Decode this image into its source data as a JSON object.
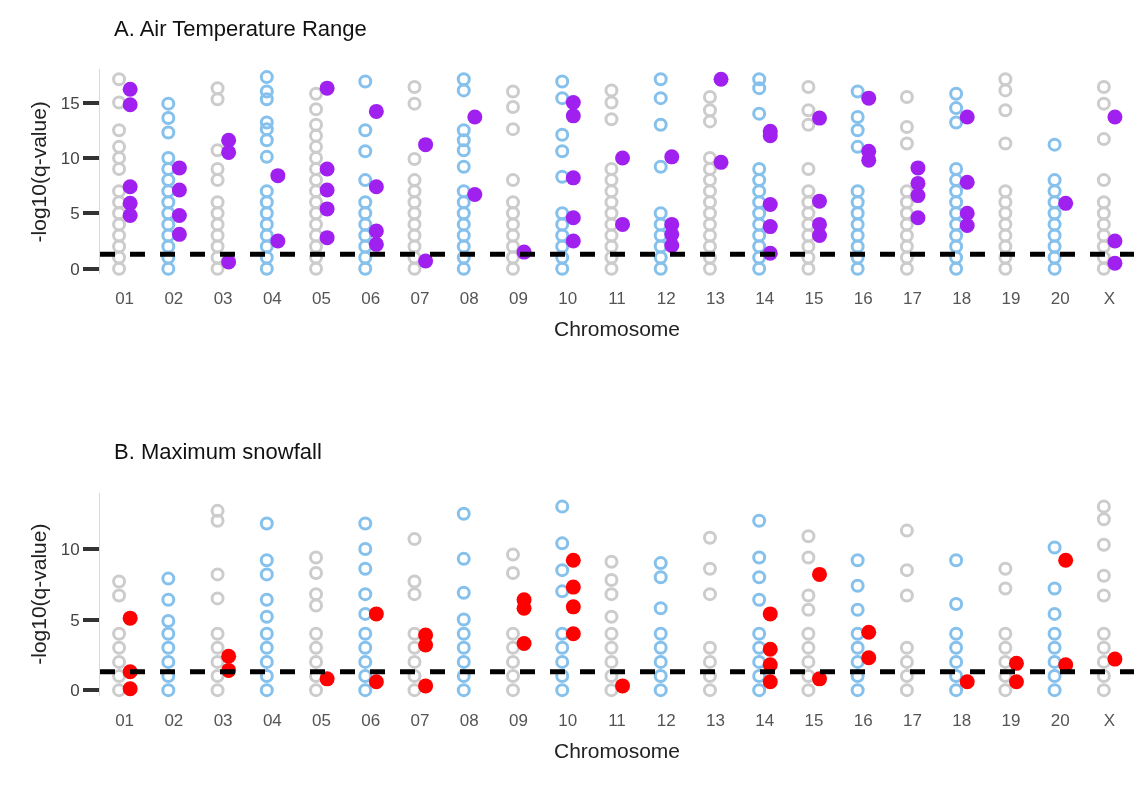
{
  "chart_data": [
    {
      "type": "scatter",
      "title": "A. Air Temperature Range",
      "xlabel": "Chromosome",
      "ylabel": "-log10(q-value)",
      "categories": [
        "01",
        "02",
        "03",
        "04",
        "05",
        "06",
        "07",
        "08",
        "09",
        "10",
        "11",
        "12",
        "13",
        "14",
        "15",
        "16",
        "17",
        "18",
        "19",
        "20",
        "X"
      ],
      "ylim": [
        -0.5,
        18
      ],
      "yticks": [
        0,
        5,
        10,
        15
      ],
      "ref_lines": [
        {
          "axis": "y",
          "value": 1.3,
          "color": "#000000",
          "line_style": "dashed"
        }
      ],
      "series": [
        {
          "color": "#cccccc",
          "marker": "circle-open",
          "x": [
            "01",
            "01",
            "01",
            "01",
            "01",
            "01",
            "01",
            "01",
            "01",
            "01",
            "01",
            "01",
            "01",
            "01",
            "03",
            "03",
            "03",
            "03",
            "03",
            "03",
            "03",
            "03",
            "03",
            "03",
            "03",
            "03",
            "05",
            "05",
            "05",
            "05",
            "05",
            "05",
            "05",
            "05",
            "05",
            "05",
            "05",
            "05",
            "05",
            "05",
            "05",
            "05",
            "07",
            "07",
            "07",
            "07",
            "07",
            "07",
            "07",
            "07",
            "07",
            "07",
            "07",
            "07",
            "09",
            "09",
            "09",
            "09",
            "09",
            "09",
            "09",
            "09",
            "09",
            "09",
            "09",
            "11",
            "11",
            "11",
            "11",
            "11",
            "11",
            "11",
            "11",
            "11",
            "11",
            "11",
            "11",
            "11",
            "13",
            "13",
            "13",
            "13",
            "13",
            "13",
            "13",
            "13",
            "13",
            "13",
            "13",
            "13",
            "13",
            "13",
            "15",
            "15",
            "15",
            "15",
            "15",
            "15",
            "15",
            "15",
            "15",
            "15",
            "15",
            "15",
            "17",
            "17",
            "17",
            "17",
            "17",
            "17",
            "17",
            "17",
            "17",
            "17",
            "17",
            "19",
            "19",
            "19",
            "19",
            "19",
            "19",
            "19",
            "19",
            "19",
            "19",
            "19",
            "19",
            "X",
            "X",
            "X",
            "X",
            "X",
            "X",
            "X",
            "X",
            "X",
            "X",
            "X"
          ],
          "values": [
            0,
            1,
            2,
            3,
            4,
            5,
            6,
            7,
            9,
            10,
            11,
            12.5,
            15,
            17.1,
            0,
            1,
            2,
            3,
            4,
            5,
            6,
            8,
            9,
            10.7,
            15.3,
            16.3,
            0,
            1,
            2,
            3,
            4,
            5,
            6,
            7,
            8,
            9,
            10,
            11,
            12,
            13,
            14.4,
            15.8,
            0,
            1,
            2,
            3,
            4,
            5,
            6,
            7,
            8,
            9.9,
            14.9,
            16.4,
            0,
            1,
            2,
            3,
            4,
            5,
            6,
            8,
            12.6,
            14.6,
            16,
            0,
            1,
            2,
            3,
            4,
            5,
            6,
            7,
            8,
            9,
            13.5,
            15,
            16.1,
            0,
            1,
            2,
            3,
            4,
            5,
            6,
            7,
            8,
            9,
            10,
            13.3,
            14.3,
            15.5,
            0,
            1,
            2,
            3,
            4,
            5,
            6,
            7,
            9,
            13,
            14.3,
            16.4,
            0,
            1,
            2,
            3,
            4,
            5,
            6,
            7,
            11.3,
            12.8,
            15.5,
            0,
            1,
            2,
            3,
            4,
            5,
            6,
            7,
            11.3,
            14.3,
            16.1,
            17.1,
            0,
            1,
            2,
            3,
            4,
            5,
            6,
            8,
            11.7,
            14.9,
            16.4
          ]
        },
        {
          "color": "#85c1ec",
          "marker": "circle-open",
          "x": [
            "02",
            "02",
            "02",
            "02",
            "02",
            "02",
            "02",
            "02",
            "02",
            "02",
            "02",
            "02",
            "02",
            "02",
            "04",
            "04",
            "04",
            "04",
            "04",
            "04",
            "04",
            "04",
            "04",
            "04",
            "04",
            "04",
            "04",
            "04",
            "04",
            "06",
            "06",
            "06",
            "06",
            "06",
            "06",
            "06",
            "06",
            "06",
            "06",
            "06",
            "08",
            "08",
            "08",
            "08",
            "08",
            "08",
            "08",
            "08",
            "08",
            "08",
            "08",
            "08",
            "08",
            "08",
            "10",
            "10",
            "10",
            "10",
            "10",
            "10",
            "10",
            "10",
            "10",
            "10",
            "10",
            "12",
            "12",
            "12",
            "12",
            "12",
            "12",
            "12",
            "12",
            "12",
            "12",
            "14",
            "14",
            "14",
            "14",
            "14",
            "14",
            "14",
            "14",
            "14",
            "14",
            "14",
            "14",
            "14",
            "16",
            "16",
            "16",
            "16",
            "16",
            "16",
            "16",
            "16",
            "16",
            "16",
            "16",
            "16",
            "18",
            "18",
            "18",
            "18",
            "18",
            "18",
            "18",
            "18",
            "18",
            "18",
            "18",
            "18",
            "18",
            "20",
            "20",
            "20",
            "20",
            "20",
            "20",
            "20",
            "20",
            "20",
            "20"
          ],
          "values": [
            0,
            1,
            2,
            3,
            4,
            5,
            6,
            7,
            8,
            9,
            10,
            12.3,
            13.6,
            14.9,
            0,
            1,
            2,
            3,
            4,
            5,
            6,
            7,
            10.1,
            11.6,
            12.6,
            13.2,
            15.3,
            16,
            17.3,
            0,
            1,
            2,
            3,
            4,
            5,
            6,
            8,
            10.6,
            12.5,
            16.9,
            0,
            1,
            2,
            3,
            4,
            5,
            6,
            7,
            9.2,
            10.7,
            11.6,
            12.5,
            16.1,
            17.1,
            0,
            1,
            2,
            3,
            4,
            5,
            8.3,
            10.6,
            12.1,
            15.4,
            16.9,
            0,
            1,
            2,
            3,
            4,
            5,
            9.2,
            13,
            15.4,
            17.1,
            0,
            1,
            2,
            3,
            4,
            5,
            6,
            7,
            8,
            9,
            14,
            16.3,
            17.1,
            0,
            1,
            2,
            3,
            4,
            5,
            6,
            7,
            11,
            12.5,
            13.7,
            16,
            0,
            1,
            2,
            3,
            4,
            5,
            6,
            7,
            8,
            9,
            13.2,
            14.5,
            15.8,
            0,
            1,
            2,
            3,
            4,
            5,
            6,
            7,
            8,
            11.2
          ]
        },
        {
          "color": "#a020f0",
          "marker": "circle",
          "x": [
            "01",
            "01",
            "01",
            "01",
            "01",
            "02",
            "02",
            "02",
            "02",
            "03",
            "03",
            "03",
            "04",
            "04",
            "05",
            "05",
            "05",
            "05",
            "05",
            "06",
            "06",
            "06",
            "06",
            "07",
            "07",
            "08",
            "08",
            "09",
            "10",
            "10",
            "10",
            "10",
            "10",
            "11",
            "11",
            "12",
            "12",
            "12",
            "12",
            "13",
            "13",
            "14",
            "14",
            "14",
            "14",
            "14",
            "15",
            "15",
            "15",
            "15",
            "16",
            "16",
            "16",
            "17",
            "17",
            "17",
            "17",
            "18",
            "18",
            "18",
            "18",
            "20",
            "X",
            "X",
            "X"
          ],
          "values": [
            16.2,
            14.8,
            7.4,
            5.9,
            4.8,
            9.1,
            7.1,
            4.8,
            3.1,
            11.6,
            10.5,
            0.6,
            8.4,
            2.5,
            16.3,
            9,
            7.1,
            5.4,
            2.8,
            14.2,
            7.4,
            3.4,
            2.2,
            11.2,
            0.7,
            13.7,
            6.7,
            1.5,
            15,
            13.8,
            8.2,
            4.6,
            2.5,
            10,
            4,
            10.1,
            4,
            3.1,
            2.1,
            17.1,
            9.6,
            12.4,
            12,
            5.8,
            3.8,
            1.4,
            13.6,
            6.1,
            4,
            3,
            15.4,
            10.6,
            9.8,
            9.1,
            7.7,
            6.6,
            4.6,
            13.7,
            7.8,
            5,
            3.9,
            5.9,
            13.7,
            2.5,
            0.5
          ]
        }
      ]
    },
    {
      "type": "scatter",
      "title": "B. Maximum snowfall",
      "xlabel": "Chromosome",
      "ylabel": "-log10(q-value)",
      "categories": [
        "01",
        "02",
        "03",
        "04",
        "05",
        "06",
        "07",
        "08",
        "09",
        "10",
        "11",
        "12",
        "13",
        "14",
        "15",
        "16",
        "17",
        "18",
        "19",
        "20",
        "X"
      ],
      "ylim": [
        -0.4,
        14
      ],
      "yticks": [
        0,
        5,
        10
      ],
      "ref_lines": [
        {
          "axis": "y",
          "value": 1.3,
          "color": "#000000",
          "line_style": "dashed"
        }
      ],
      "series": [
        {
          "color": "#cccccc",
          "marker": "circle-open",
          "x": [
            "01",
            "01",
            "01",
            "01",
            "01",
            "01",
            "01",
            "03",
            "03",
            "03",
            "03",
            "03",
            "03",
            "03",
            "03",
            "03",
            "05",
            "05",
            "05",
            "05",
            "05",
            "05",
            "05",
            "05",
            "05",
            "07",
            "07",
            "07",
            "07",
            "07",
            "07",
            "07",
            "07",
            "09",
            "09",
            "09",
            "09",
            "09",
            "09",
            "09",
            "11",
            "11",
            "11",
            "11",
            "11",
            "11",
            "11",
            "11",
            "11",
            "13",
            "13",
            "13",
            "13",
            "13",
            "13",
            "13",
            "15",
            "15",
            "15",
            "15",
            "15",
            "15",
            "15",
            "15",
            "15",
            "17",
            "17",
            "17",
            "17",
            "17",
            "17",
            "17",
            "19",
            "19",
            "19",
            "19",
            "19",
            "19",
            "19",
            "X",
            "X",
            "X",
            "X",
            "X",
            "X",
            "X",
            "X",
            "X",
            "X"
          ],
          "values": [
            0,
            1,
            2,
            3,
            4,
            6.7,
            7.7,
            0,
            1,
            2,
            3,
            4,
            6.5,
            8.2,
            12,
            12.7,
            0,
            1,
            2,
            3,
            4,
            6,
            6.8,
            8.3,
            9.4,
            0,
            1,
            2,
            3,
            4,
            6.8,
            7.7,
            10.7,
            0,
            1,
            2,
            3,
            4,
            8.3,
            9.6,
            0,
            1,
            2,
            3,
            4,
            5.2,
            6.8,
            7.8,
            9.1,
            0,
            1,
            2,
            3,
            6.8,
            8.6,
            10.8,
            0,
            1,
            2,
            3,
            4,
            5.7,
            6.7,
            9.4,
            10.9,
            0,
            1,
            2,
            3,
            6.7,
            8.5,
            11.3,
            0,
            1,
            2,
            3,
            4,
            7.2,
            8.6,
            0,
            1,
            2,
            3,
            4,
            6.7,
            8.1,
            10.3,
            12.1,
            13
          ]
        },
        {
          "color": "#85c1ec",
          "marker": "circle-open",
          "x": [
            "02",
            "02",
            "02",
            "02",
            "02",
            "02",
            "02",
            "02",
            "04",
            "04",
            "04",
            "04",
            "04",
            "04",
            "04",
            "04",
            "04",
            "04",
            "06",
            "06",
            "06",
            "06",
            "06",
            "06",
            "06",
            "06",
            "06",
            "06",
            "08",
            "08",
            "08",
            "08",
            "08",
            "08",
            "08",
            "08",
            "08",
            "10",
            "10",
            "10",
            "10",
            "10",
            "10",
            "10",
            "10",
            "10",
            "12",
            "12",
            "12",
            "12",
            "12",
            "12",
            "12",
            "12",
            "14",
            "14",
            "14",
            "14",
            "14",
            "14",
            "14",
            "14",
            "14",
            "16",
            "16",
            "16",
            "16",
            "16",
            "16",
            "16",
            "16",
            "18",
            "18",
            "18",
            "18",
            "18",
            "18",
            "18",
            "20",
            "20",
            "20",
            "20",
            "20",
            "20",
            "20",
            "20"
          ],
          "values": [
            0,
            1,
            2,
            3,
            4,
            4.9,
            6.4,
            7.9,
            0,
            1,
            2,
            3,
            4,
            5.2,
            6.4,
            8.2,
            9.2,
            11.8,
            0,
            1,
            2,
            3,
            4,
            5.4,
            6.8,
            8.6,
            10,
            11.8,
            0,
            1,
            2,
            3,
            4,
            5,
            6.9,
            9.3,
            12.5,
            0,
            1,
            2,
            3,
            4,
            7,
            8.5,
            10.4,
            13,
            0,
            1,
            2,
            3,
            4,
            5.8,
            8,
            9,
            0,
            1,
            2,
            3,
            4,
            6.4,
            8,
            9.4,
            12,
            0,
            1,
            2,
            3,
            4,
            5.7,
            7.4,
            9.2,
            0,
            1,
            2,
            3,
            4,
            6.1,
            9.2,
            0,
            1,
            2,
            3,
            4,
            5.4,
            7.2,
            10.1
          ]
        },
        {
          "color": "#ff0000",
          "marker": "circle",
          "x": [
            "01",
            "01",
            "01",
            "03",
            "03",
            "05",
            "06",
            "06",
            "07",
            "07",
            "07",
            "09",
            "09",
            "09",
            "10",
            "10",
            "10",
            "10",
            "11",
            "14",
            "14",
            "14",
            "14",
            "15",
            "15",
            "16",
            "16",
            "18",
            "19",
            "19",
            "20",
            "20",
            "X"
          ],
          "values": [
            5.1,
            1.3,
            0.1,
            2.4,
            1.4,
            0.8,
            5.4,
            0.6,
            3.9,
            3.2,
            0.3,
            6.4,
            5.8,
            3.3,
            9.2,
            7.3,
            5.9,
            4,
            0.3,
            5.4,
            2.9,
            1.8,
            0.6,
            8.2,
            0.8,
            4.1,
            2.3,
            0.6,
            1.9,
            0.6,
            9.2,
            1.8,
            2.2
          ]
        }
      ]
    }
  ]
}
